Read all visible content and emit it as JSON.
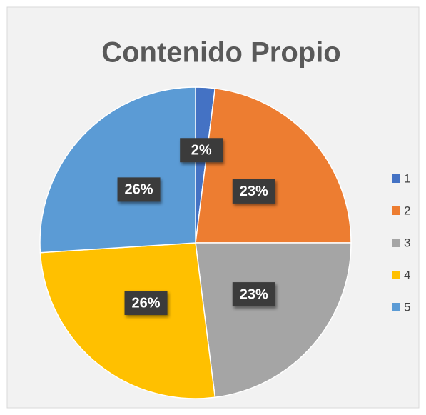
{
  "chart_data": {
    "type": "pie",
    "title": "Contenido Propio",
    "categories": [
      "1",
      "2",
      "3",
      "4",
      "5"
    ],
    "values": [
      2,
      23,
      23,
      26,
      26
    ],
    "value_labels": [
      "2%",
      "23%",
      "23%",
      "26%",
      "26%"
    ],
    "colors": [
      "#4472c4",
      "#ed7d31",
      "#a5a5a5",
      "#ffc000",
      "#5b9bd5"
    ],
    "legend": "right"
  }
}
